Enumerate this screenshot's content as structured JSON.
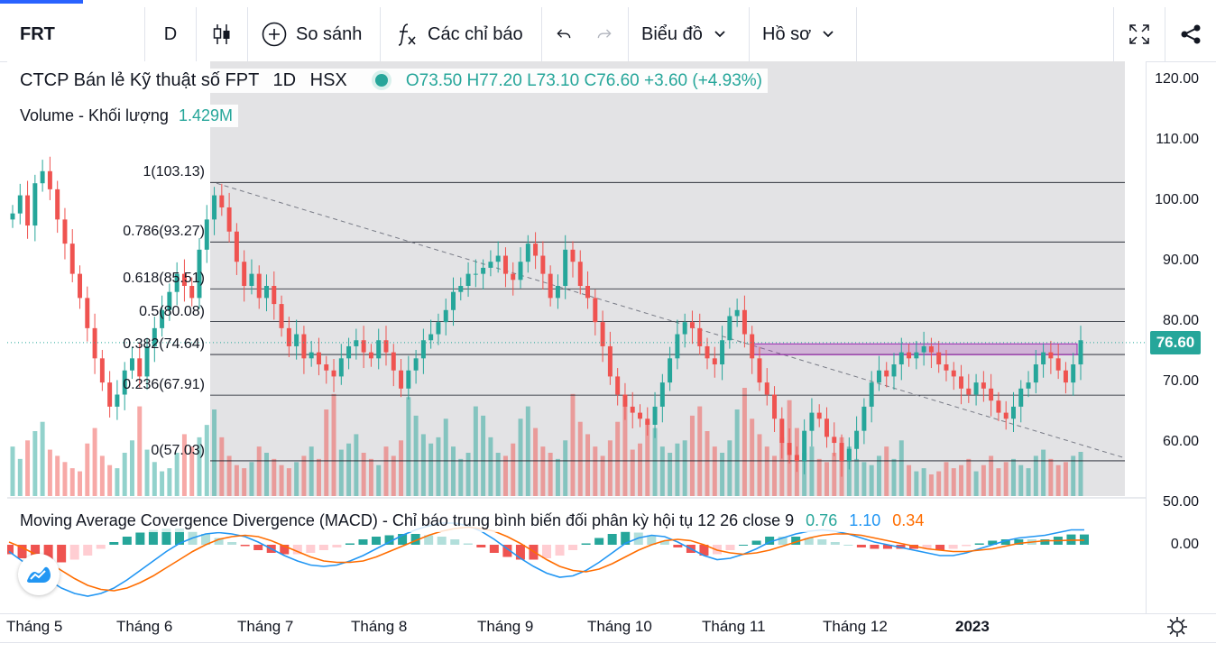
{
  "toolbar": {
    "symbol": "FRT",
    "interval": "D",
    "compare_label": "So sánh",
    "indicators_label": "Các chỉ báo",
    "chart_label": "Biểu đồ",
    "profile_label": "Hồ sơ"
  },
  "legend": {
    "title": "CTCP Bán lẻ Kỹ thuật số FPT",
    "interval": "1D",
    "exchange": "HSX",
    "open": "O73.50",
    "high": "H77.20",
    "low": "L73.10",
    "close": "C76.60",
    "change": "+3.60 (+4.93%)",
    "volume_label": "Volume - Khối lượng",
    "volume_value": "1.429M",
    "macd_label": "Moving Average Covergence Divergence (MACD) - Chỉ báo trung bình biến đối phân kỳ hội tụ 12 26 close 9",
    "macd_hist": "0.76",
    "macd_line": "1.10",
    "macd_signal": "0.34"
  },
  "price_axis": [
    "120.00",
    "110.00",
    "100.00",
    "90.00",
    "80.00",
    "70.00",
    "60.00",
    "50.00"
  ],
  "macd_axis": "0.00",
  "last_price": "76.60",
  "fib_levels": [
    {
      "label": "1(103.13)",
      "price": 103.13
    },
    {
      "label": "0.786(93.27)",
      "price": 93.27
    },
    {
      "label": "0.618(85.51)",
      "price": 85.51
    },
    {
      "label": "0.5(80.08)",
      "price": 80.08
    },
    {
      "label": "0.382(74.64)",
      "price": 74.64
    },
    {
      "label": "0.236(67.91)",
      "price": 67.91
    },
    {
      "label": "0(57.03)",
      "price": 57.03
    }
  ],
  "time_axis": [
    "Tháng 5",
    "Tháng 6",
    "Tháng 7",
    "Tháng 8",
    "Tháng 9",
    "Tháng 10",
    "Tháng 11",
    "Tháng 12",
    "2023"
  ],
  "colors": {
    "up": "#26a69a",
    "down": "#ef5350",
    "macd": "#2196f3",
    "signal": "#ff6d00",
    "zone": "#9c27b0"
  },
  "chart_data": {
    "type": "candlestick",
    "title": "CTCP Bán lẻ Kỹ thuật số FPT",
    "ylim": [
      50,
      122
    ],
    "close": [
      98,
      101,
      96,
      103,
      105,
      102,
      97,
      93,
      88,
      84,
      79,
      74,
      70,
      66,
      68,
      72,
      74,
      71,
      76,
      79,
      82,
      85,
      88,
      86,
      84,
      92,
      97,
      101,
      99,
      95,
      90,
      86,
      88,
      84,
      86,
      83,
      79,
      76,
      78,
      74,
      75,
      73,
      72,
      71,
      74,
      76,
      77,
      75,
      74,
      77,
      75,
      72,
      69,
      72,
      74,
      77,
      78,
      80,
      82,
      85,
      86,
      88,
      88,
      89,
      90,
      91,
      88,
      87,
      90,
      93,
      91,
      88,
      84,
      86,
      92,
      90,
      86,
      84,
      80,
      76,
      71,
      68,
      66,
      65,
      64,
      63,
      66,
      70,
      74,
      78,
      80,
      79,
      76,
      74,
      73,
      77,
      81,
      82,
      78,
      74,
      70,
      68,
      64,
      60,
      58,
      57,
      62,
      65,
      64,
      61,
      60,
      57,
      59,
      62,
      66,
      70,
      72,
      71,
      73,
      75,
      74,
      75,
      76,
      75,
      73,
      72,
      71,
      69,
      68,
      70,
      69,
      67,
      65,
      64,
      66,
      69,
      70,
      73,
      75,
      74,
      72,
      70,
      73,
      77
    ],
    "volume_millions": [
      1.6,
      1.2,
      1.8,
      2.1,
      2.4,
      1.5,
      1.3,
      1.1,
      0.9,
      0.8,
      1.7,
      2.2,
      1.3,
      1.0,
      0.9,
      1.4,
      1.8,
      2.9,
      1.5,
      1.1,
      0.8,
      0.9,
      1.4,
      2.0,
      1.6,
      1.9,
      2.3,
      2.8,
      1.9,
      1.3,
      1.0,
      0.9,
      1.1,
      1.6,
      1.4,
      1.2,
      1.0,
      0.9,
      1.1,
      1.3,
      1.6,
      1.2,
      2.8,
      3.3,
      1.5,
      1.7,
      2.0,
      1.4,
      1.2,
      1.0,
      1.6,
      1.3,
      1.8,
      3.2,
      2.6,
      2.0,
      1.7,
      1.9,
      2.5,
      1.6,
      1.2,
      1.4,
      2.9,
      2.6,
      1.9,
      1.4,
      1.3,
      1.7,
      2.5,
      2.9,
      2.2,
      1.6,
      1.4,
      1.2,
      1.8,
      3.3,
      2.4,
      2.0,
      1.6,
      1.3,
      1.8,
      2.4,
      2.9,
      1.5,
      1.7,
      2.4,
      2.2,
      1.6,
      1.4,
      1.7,
      1.8,
      2.6,
      2.9,
      2.1,
      1.6,
      1.4,
      1.8,
      2.8,
      3.5,
      2.5,
      2.0,
      1.6,
      1.3,
      1.9,
      3.1,
      2.2,
      1.4,
      1.6,
      1.2,
      1.1,
      1.4,
      1.9,
      1.6,
      1.2,
      1.1,
      1.0,
      1.3,
      1.6,
      1.2,
      1.8,
      1.0,
      0.8,
      0.9,
      0.7,
      0.8,
      1.1,
      0.9,
      1.0,
      1.2,
      0.8,
      1.0,
      1.3,
      0.9,
      1.1,
      1.2,
      1.0,
      0.9,
      1.3,
      1.5,
      1.2,
      1.0,
      1.1,
      1.3,
      1.429
    ],
    "macd": [
      -0.5,
      -1.2,
      -1.9,
      -2.6,
      -3.2,
      -3.6,
      -3.8,
      -3.6,
      -3.2,
      -2.6,
      -1.9,
      -1.2,
      -0.5,
      0.1,
      0.5,
      0.8,
      0.9,
      0.8,
      0.6,
      0.2,
      -0.3,
      -0.8,
      -1.2,
      -1.5,
      -1.6,
      -1.5,
      -1.2,
      -0.8,
      -0.3,
      0.2,
      0.7,
      1.1,
      1.4,
      1.6,
      1.6,
      1.4,
      1.0,
      0.4,
      -0.3,
      -1.0,
      -1.6,
      -2.1,
      -2.4,
      -2.3,
      -1.9,
      -1.3,
      -0.6,
      0.1,
      0.5,
      0.7,
      0.6,
      0.2,
      -0.3,
      -0.8,
      -1.1,
      -1.0,
      -0.7,
      -0.3,
      0.2,
      0.5,
      0.8,
      1.0,
      1.1,
      1.0,
      0.8,
      0.5,
      0.2,
      0.0,
      -0.2,
      -0.4,
      -0.6,
      -0.8,
      -0.8,
      -0.6,
      -0.3,
      0.0,
      0.3,
      0.5,
      0.6,
      0.7,
      0.9,
      1.1,
      1.1
    ],
    "signal": [
      0.2,
      -0.2,
      -0.7,
      -1.3,
      -1.9,
      -2.5,
      -3.0,
      -3.3,
      -3.4,
      -3.2,
      -2.8,
      -2.3,
      -1.7,
      -1.1,
      -0.5,
      0.0,
      0.4,
      0.6,
      0.7,
      0.6,
      0.3,
      -0.1,
      -0.5,
      -0.9,
      -1.2,
      -1.3,
      -1.3,
      -1.2,
      -0.9,
      -0.5,
      -0.1,
      0.3,
      0.7,
      1.0,
      1.2,
      1.3,
      1.2,
      1.0,
      0.6,
      0.1,
      -0.5,
      -1.1,
      -1.6,
      -1.9,
      -2.0,
      -1.8,
      -1.4,
      -0.9,
      -0.4,
      0.0,
      0.3,
      0.4,
      0.3,
      0.0,
      -0.4,
      -0.6,
      -0.7,
      -0.6,
      -0.4,
      -0.1,
      0.2,
      0.5,
      0.7,
      0.8,
      0.8,
      0.7,
      0.5,
      0.3,
      0.1,
      -0.1,
      -0.3,
      -0.4,
      -0.5,
      -0.5,
      -0.4,
      -0.3,
      -0.1,
      0.1,
      0.2,
      0.3,
      0.3,
      0.34,
      0.34
    ]
  }
}
